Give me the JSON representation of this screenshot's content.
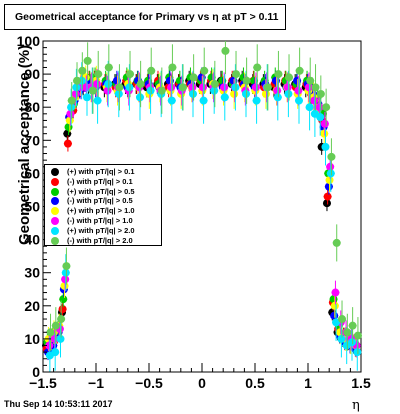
{
  "title": "Geometrical acceptance for Primary vs   η at pT > 0.11",
  "footer": "Thu Sep 14 10:53:11 2017",
  "chart_data": {
    "type": "scatter",
    "title": "Geometrical acceptance for Primary vs   η at pT > 0.11",
    "xlabel": "η",
    "ylabel": "Geometrical acceptance (%)",
    "xlim": [
      -1.5,
      1.5
    ],
    "ylim": [
      0,
      100
    ],
    "xticks": [
      "−1.5",
      "−1",
      "−0.5",
      "0",
      "0.5",
      "1",
      "1.5"
    ],
    "yticks": [
      "0",
      "10",
      "20",
      "30",
      "40",
      "50",
      "60",
      "70",
      "80",
      "90",
      "100"
    ],
    "x": [
      -1.45,
      -1.4,
      -1.35,
      -1.3,
      -1.25,
      -1.2,
      -1.15,
      -1.1,
      -1.05,
      -1.0,
      -0.9,
      -0.8,
      -0.7,
      -0.6,
      -0.5,
      -0.4,
      -0.3,
      -0.2,
      -0.1,
      0.0,
      0.1,
      0.2,
      0.3,
      0.4,
      0.5,
      0.6,
      0.7,
      0.8,
      0.9,
      1.0,
      1.05,
      1.1,
      1.15,
      1.2,
      1.25,
      1.3,
      1.35,
      1.4,
      1.45
    ],
    "series": [
      {
        "name": "(+) with pT/|q| > 0.1",
        "color": "#000000",
        "values": [
          8,
          10,
          12,
          18,
          72,
          80,
          84,
          86,
          87,
          87,
          86,
          87,
          87,
          87,
          86,
          87,
          87,
          87,
          88,
          87,
          87,
          88,
          87,
          88,
          87,
          87,
          86,
          87,
          87,
          86,
          84,
          82,
          68,
          51,
          18,
          12,
          10,
          9,
          8
        ]
      },
      {
        "name": "(-) with pT/|q| > 0.1",
        "color": "#ff0000",
        "values": [
          7,
          9,
          11,
          19,
          69,
          79,
          85,
          87,
          88,
          88,
          87,
          86,
          88,
          87,
          87,
          88,
          86,
          87,
          87,
          88,
          88,
          87,
          88,
          87,
          88,
          86,
          87,
          88,
          86,
          87,
          85,
          82,
          76,
          53,
          21,
          13,
          11,
          10,
          9
        ]
      },
      {
        "name": "(+) with pT/|q| > 0.5",
        "color": "#00cc00",
        "values": [
          9,
          11,
          13,
          22,
          74,
          81,
          86,
          88,
          88,
          89,
          88,
          87,
          89,
          88,
          88,
          87,
          89,
          88,
          89,
          88,
          89,
          88,
          87,
          89,
          88,
          88,
          89,
          88,
          87,
          88,
          86,
          83,
          78,
          60,
          22,
          14,
          11,
          10,
          9
        ]
      },
      {
        "name": "(-) with pT/|q| > 0.5",
        "color": "#0000ff",
        "values": [
          6,
          8,
          12,
          25,
          77,
          82,
          85,
          87,
          87,
          86,
          87,
          88,
          86,
          88,
          87,
          86,
          88,
          86,
          87,
          89,
          87,
          86,
          88,
          87,
          86,
          87,
          88,
          86,
          88,
          87,
          84,
          81,
          74,
          56,
          17,
          11,
          9,
          8,
          7
        ]
      },
      {
        "name": "(+) with pT/|q| > 1.0",
        "color": "#ffff00",
        "values": [
          10,
          12,
          14,
          26,
          76,
          83,
          87,
          89,
          86,
          88,
          86,
          85,
          87,
          86,
          84,
          86,
          85,
          84,
          86,
          85,
          87,
          85,
          84,
          86,
          85,
          84,
          85,
          86,
          84,
          85,
          83,
          80,
          72,
          58,
          20,
          12,
          10,
          9,
          8
        ]
      },
      {
        "name": "(-) with pT/|q| > 1.0",
        "color": "#ff00ff",
        "values": [
          8,
          10,
          13,
          28,
          78,
          84,
          86,
          86,
          86,
          87,
          85,
          86,
          85,
          86,
          86,
          85,
          86,
          85,
          86,
          86,
          86,
          86,
          86,
          85,
          86,
          86,
          85,
          86,
          85,
          86,
          82,
          80,
          75,
          62,
          24,
          15,
          12,
          10,
          8
        ]
      },
      {
        "name": "(+) with pT/|q| > 2.0",
        "color": "#00e5ff",
        "values": [
          5,
          6,
          10,
          30,
          80,
          86,
          88,
          83,
          85,
          82,
          87,
          84,
          86,
          83,
          85,
          84,
          82,
          86,
          84,
          82,
          85,
          83,
          86,
          84,
          82,
          86,
          83,
          84,
          82,
          80,
          78,
          77,
          68,
          60,
          15,
          10,
          8,
          9,
          6
        ]
      },
      {
        "name": "(-) with pT/|q| > 2.0",
        "color": "#66cc55",
        "values": [
          12,
          14,
          16,
          32,
          82,
          88,
          91,
          94,
          85,
          90,
          92,
          86,
          90,
          87,
          91,
          85,
          92,
          86,
          89,
          91,
          87,
          97,
          90,
          88,
          92,
          86,
          90,
          89,
          91,
          88,
          86,
          84,
          80,
          65,
          39,
          16,
          12,
          14,
          11
        ]
      }
    ],
    "legend_position": "left-middle",
    "grid": false
  }
}
